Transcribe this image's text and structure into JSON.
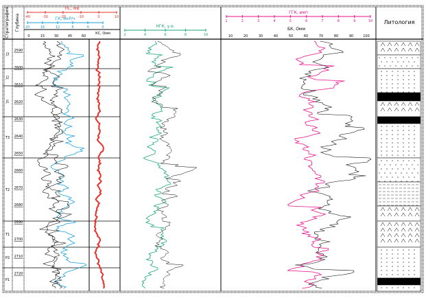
{
  "title": "Литология",
  "header": {
    "strat_label": "Стратиграфия",
    "depth_label": "Глубина",
    "track1": {
      "red_curve": {
        "name": "ПС, мВ",
        "ticks": [
          "-40",
          "-30",
          "-20",
          "-10",
          "0",
          "10"
        ],
        "color": "#e8302a"
      },
      "blue_curve": {
        "name": "ГК, мкР/ч",
        "ticks": [
          "20",
          "16",
          "12",
          "8",
          "4",
          "0"
        ],
        "color": "#1aa0d8"
      },
      "black_curves": {
        "name": "КС, Омм",
        "ticks": [
          "0",
          "15",
          "30",
          "45",
          "60"
        ]
      }
    },
    "track2": {
      "name": "НГК, у.е.",
      "ticks": [
        "2",
        "4",
        "6",
        "8",
        "10"
      ],
      "color": "#18a878"
    },
    "track3": {
      "pink_curve": {
        "name": "ГГК, имп",
        "ticks": [
          "1",
          "2",
          "3",
          "4",
          "5",
          "6",
          "7",
          "8",
          "9",
          "10"
        ],
        "color": "#e8108c"
      },
      "black_curve": {
        "name": "БК, Омм",
        "ticks": [
          "10",
          "20",
          "30",
          "40",
          "50",
          "60",
          "70",
          "80",
          "90",
          "100"
        ]
      }
    }
  },
  "strat_units": [
    "J3",
    "J2",
    "J1",
    "T3",
    "T2",
    "T1",
    "P2",
    "P1"
  ],
  "depths": [
    "2590",
    "2600",
    "2610",
    "2620",
    "2630",
    "2640",
    "2650",
    "2660",
    "2670",
    "2680",
    "2690",
    "2700",
    "2710",
    "2720"
  ]
}
